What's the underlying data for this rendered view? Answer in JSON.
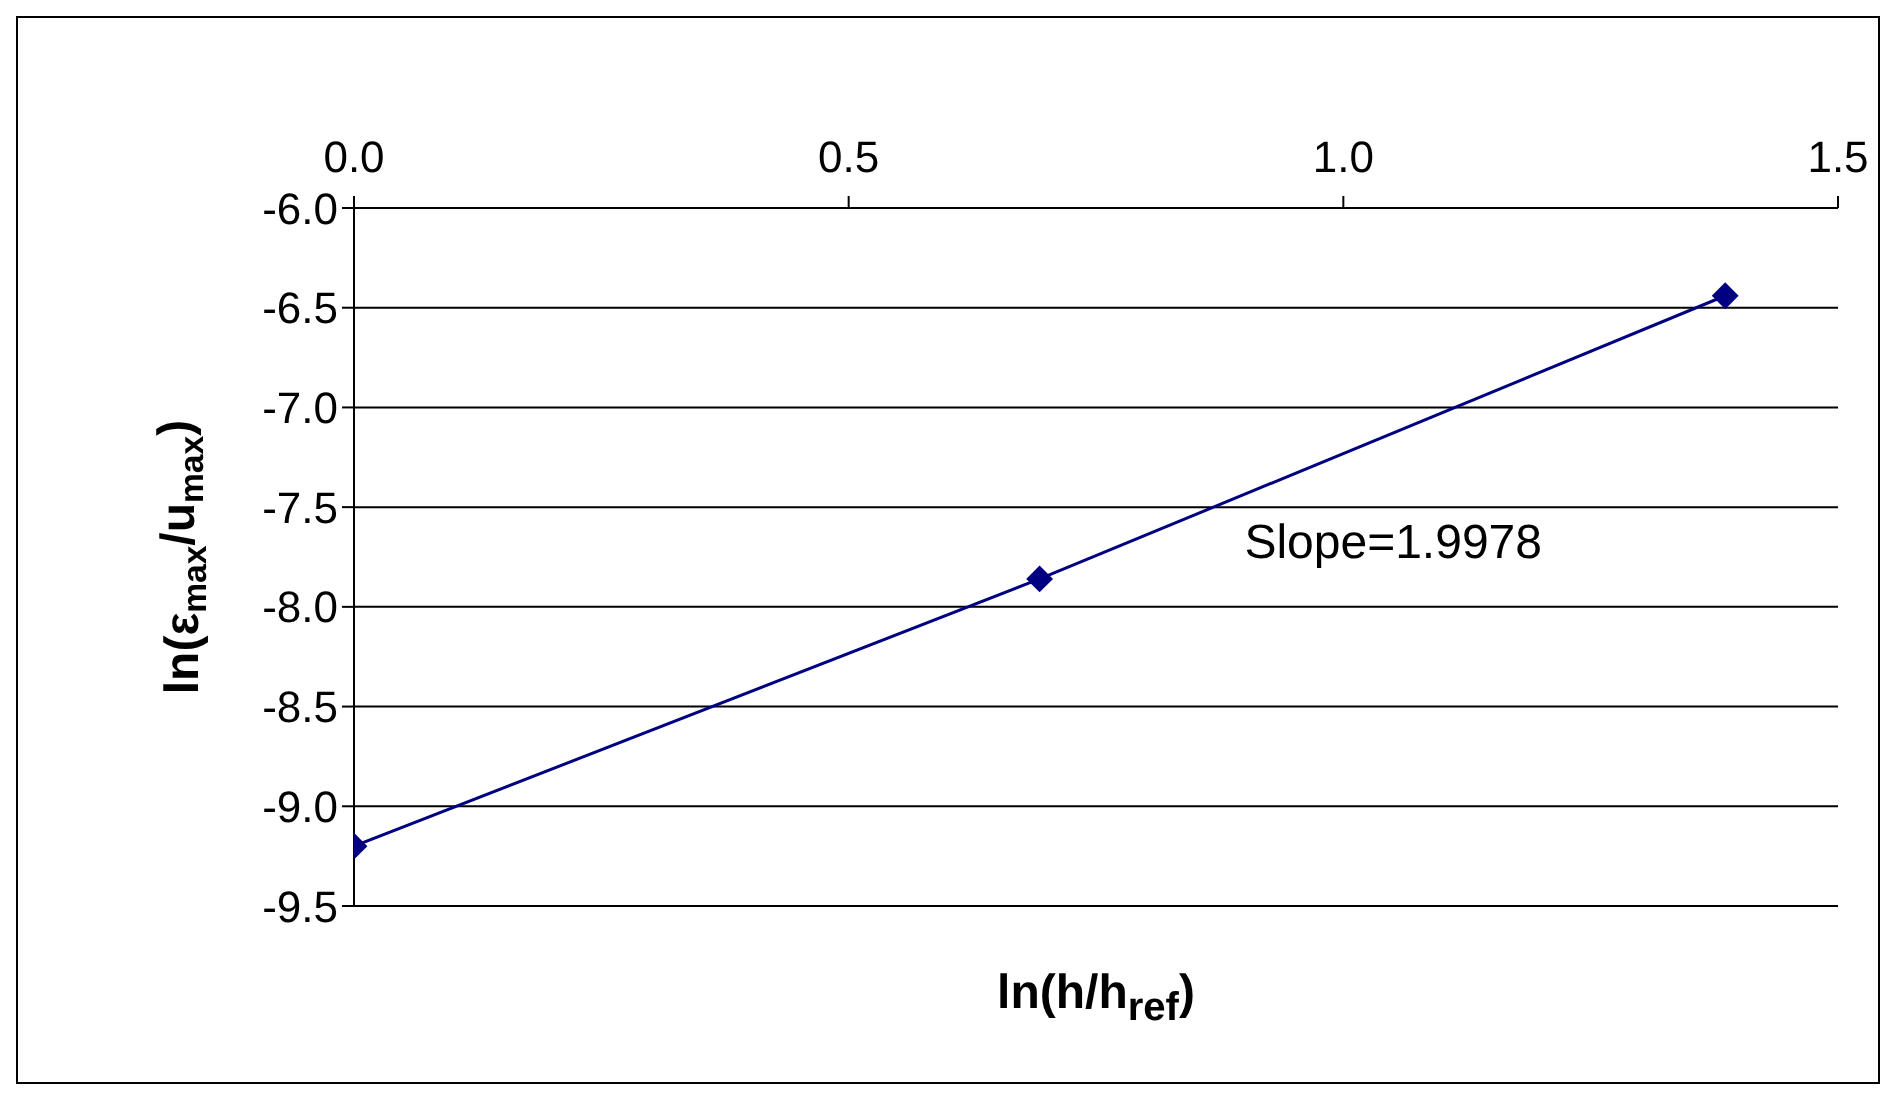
{
  "chart_data": {
    "type": "line",
    "xlabel": "ln(h/h$_{ref}$)",
    "ylabel": "ln(ε$_{max}$/u$_{max}$)",
    "x": [
      0,
      0.693,
      1.386
    ],
    "series": [
      {
        "color": "#000080",
        "values": [
          -9.2,
          -7.86,
          -6.44
        ]
      }
    ],
    "xlim": [
      0,
      1.5
    ],
    "xticks": [
      {
        "value": 0,
        "label": "0.0"
      },
      {
        "value": 0.5,
        "label": "0.5"
      },
      {
        "value": 1,
        "label": "1.0"
      },
      {
        "value": 1.5,
        "label": "1.5"
      }
    ],
    "ylim": [
      -9.5,
      -6
    ],
    "yticks": [
      {
        "value": -9.5,
        "label": "-9.5"
      },
      {
        "value": -9,
        "label": "-9.0"
      },
      {
        "value": -8.5,
        "label": "-8.5"
      },
      {
        "value": -8,
        "label": "-8.0"
      },
      {
        "value": -7.5,
        "label": "-7.5"
      },
      {
        "value": -7,
        "label": "-7.0"
      },
      {
        "value": -6.5,
        "label": "-6.5"
      },
      {
        "value": -6,
        "label": "-6.0"
      }
    ],
    "annotations": [
      "Slope=1.9978"
    ],
    "grid": "y",
    "marker": "diamond",
    "line_style": "solid",
    "legend": false
  }
}
